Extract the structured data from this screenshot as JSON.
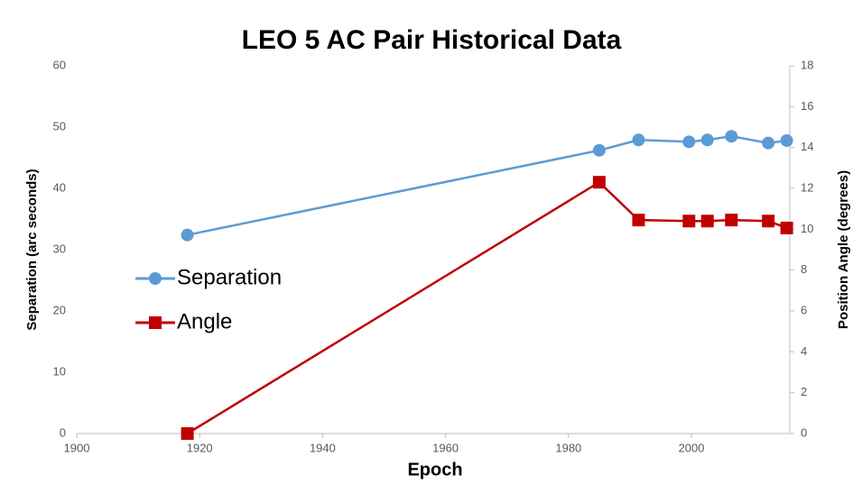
{
  "chart_data": {
    "type": "line",
    "title": "LEO 5 AC Pair Historical Data",
    "x_label": "Epoch",
    "y_label": "Separation (arc seconds)",
    "y2_label": "Position Angle (degrees)",
    "x": [
      1918,
      1985,
      1991.4,
      1999.6,
      2002.6,
      2006.5,
      2012.5,
      2015.5
    ],
    "series": [
      {
        "name": "Separation",
        "color": "#5b9bd5",
        "marker": "circle",
        "values": [
          32.4,
          46.2,
          47.9,
          47.6,
          47.9,
          48.5,
          47.4,
          47.8
        ]
      },
      {
        "name": "Angle",
        "color": "#c00000",
        "marker": "square",
        "axis": "y2",
        "values": [
          0,
          12.3,
          10.45,
          10.4,
          10.4,
          10.45,
          10.4,
          10.06
        ]
      }
    ],
    "xlim": [
      1900,
      2016
    ],
    "xticks": [
      1900,
      1920,
      1940,
      1960,
      1980,
      2000
    ],
    "ylim": [
      0,
      60
    ],
    "yticks": [
      0,
      10,
      20,
      30,
      40,
      50,
      60
    ],
    "y2lim": [
      0,
      18
    ],
    "y2ticks": [
      0,
      2,
      4,
      6,
      8,
      10,
      12,
      14,
      16,
      18
    ],
    "legend": "center-left",
    "grid": false
  }
}
